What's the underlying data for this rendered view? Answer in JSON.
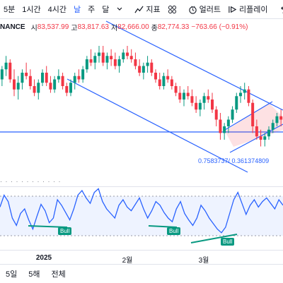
{
  "toolbar": {
    "items": [
      "5분",
      "1시간",
      "4시간",
      "날",
      "주",
      "달"
    ],
    "active_index": 3,
    "indicators_label": "지표",
    "alert_label": "얼러트",
    "replay_label": "리플레이"
  },
  "legend": {
    "symbol": "NANCE",
    "o_label": "시",
    "o_value": "83,537.99",
    "h_label": "고",
    "h_value": "83,817.63",
    "l_label": "저",
    "l_value": "82,666.00",
    "c_label": "종",
    "c_value": "82,774.33",
    "change": "−763.66 (−0.91%)"
  },
  "fib_label": "0.7583737/ 0.361374809",
  "bull_labels": [
    "Bull",
    "Bull",
    "Bull"
  ],
  "time_axis": {
    "ticks": [
      "2025",
      "2월",
      "3월"
    ]
  },
  "ranges": [
    "5일",
    "5해",
    "전체"
  ],
  "colors": {
    "up": "#089981",
    "down": "#f23645",
    "line": "#2962ff"
  },
  "chart_data": {
    "type": "candlestick",
    "series": [
      {
        "name": "price",
        "values": [
          [
            96,
            100,
            94,
            99
          ],
          [
            99,
            103,
            97,
            101
          ],
          [
            101,
            102,
            95,
            96
          ],
          [
            96,
            99,
            91,
            93
          ],
          [
            93,
            97,
            90,
            95
          ],
          [
            95,
            99,
            93,
            98
          ],
          [
            98,
            101,
            96,
            97
          ],
          [
            97,
            99,
            93,
            94
          ],
          [
            94,
            96,
            91,
            92
          ],
          [
            92,
            96,
            90,
            95
          ],
          [
            95,
            99,
            94,
            98
          ],
          [
            98,
            100,
            94,
            95
          ],
          [
            95,
            97,
            92,
            93
          ],
          [
            93,
            97,
            92,
            96
          ],
          [
            96,
            99,
            95,
            97
          ],
          [
            97,
            98,
            93,
            94
          ],
          [
            94,
            95,
            91,
            92
          ],
          [
            92,
            96,
            91,
            95
          ],
          [
            95,
            98,
            93,
            97
          ],
          [
            97,
            99,
            95,
            96
          ],
          [
            96,
            100,
            95,
            99
          ],
          [
            99,
            103,
            98,
            102
          ],
          [
            102,
            105,
            100,
            101
          ],
          [
            101,
            104,
            99,
            103
          ],
          [
            103,
            106,
            101,
            104
          ],
          [
            104,
            106,
            100,
            101
          ],
          [
            101,
            104,
            99,
            103
          ],
          [
            103,
            105,
            100,
            102
          ],
          [
            102,
            104,
            99,
            100
          ],
          [
            100,
            103,
            98,
            102
          ],
          [
            102,
            105,
            101,
            104
          ],
          [
            104,
            106,
            102,
            103
          ],
          [
            103,
            105,
            101,
            102
          ],
          [
            102,
            104,
            99,
            100
          ],
          [
            100,
            102,
            97,
            98
          ],
          [
            98,
            101,
            96,
            100
          ],
          [
            100,
            103,
            98,
            101
          ],
          [
            101,
            102,
            97,
            98
          ],
          [
            98,
            99,
            95,
            96
          ],
          [
            96,
            98,
            93,
            94
          ],
          [
            94,
            98,
            93,
            97
          ],
          [
            97,
            99,
            95,
            96
          ],
          [
            96,
            97,
            93,
            94
          ],
          [
            94,
            95,
            91,
            92
          ],
          [
            92,
            94,
            89,
            90
          ],
          [
            90,
            93,
            88,
            92
          ],
          [
            92,
            94,
            90,
            91
          ],
          [
            91,
            93,
            88,
            89
          ],
          [
            89,
            91,
            86,
            87
          ],
          [
            87,
            90,
            85,
            89
          ],
          [
            89,
            92,
            87,
            91
          ],
          [
            91,
            93,
            89,
            90
          ],
          [
            90,
            92,
            86,
            87
          ],
          [
            87,
            88,
            82,
            84
          ],
          [
            84,
            86,
            78,
            80
          ],
          [
            80,
            83,
            78,
            82
          ],
          [
            82,
            85,
            80,
            84
          ],
          [
            84,
            88,
            83,
            87
          ],
          [
            87,
            92,
            86,
            91
          ],
          [
            91,
            94,
            89,
            92
          ],
          [
            92,
            95,
            90,
            93
          ],
          [
            93,
            94,
            88,
            89
          ],
          [
            89,
            90,
            80,
            82
          ],
          [
            82,
            84,
            78,
            79
          ],
          [
            79,
            81,
            76,
            78
          ],
          [
            78,
            80,
            76,
            79
          ],
          [
            79,
            82,
            78,
            81
          ],
          [
            81,
            84,
            80,
            83
          ],
          [
            83,
            86,
            82,
            85
          ],
          [
            85,
            87,
            82,
            84
          ]
        ]
      }
    ]
  }
}
